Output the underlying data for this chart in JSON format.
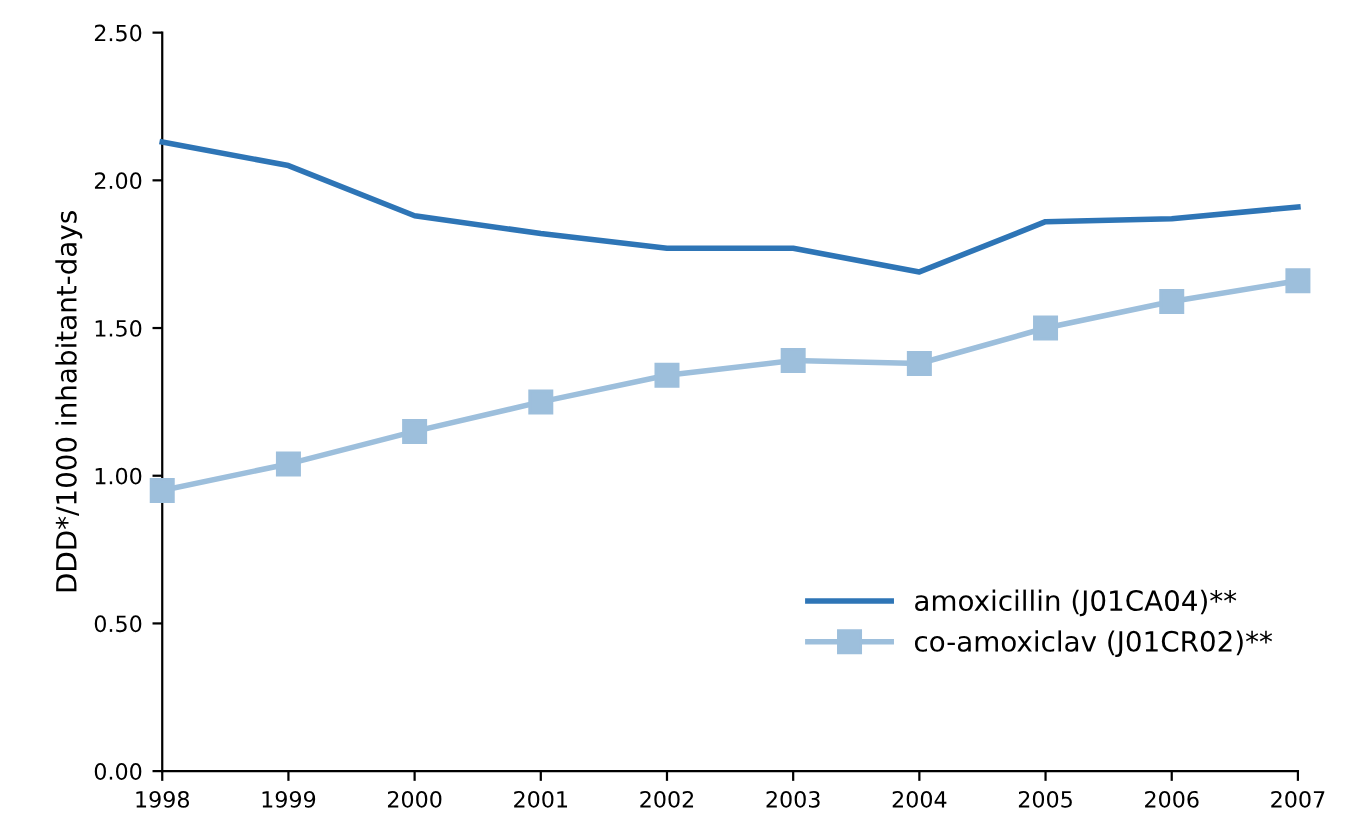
{
  "chart_data": {
    "type": "line",
    "ylabel": "DDD*/1000 inhabitant-days",
    "x": [
      1998,
      1999,
      2000,
      2001,
      2002,
      2003,
      2004,
      2005,
      2006,
      2007
    ],
    "series": [
      {
        "name": "amoxicillin (J01CA04)**",
        "color": "#2e75b6",
        "marker": "none",
        "values": [
          2.13,
          2.05,
          1.88,
          1.82,
          1.77,
          1.77,
          1.69,
          1.86,
          1.87,
          1.91
        ]
      },
      {
        "name": "co-amoxiclav (J01CR02)**",
        "color": "#9dbfdc",
        "marker": "square",
        "values": [
          0.95,
          1.04,
          1.15,
          1.25,
          1.34,
          1.39,
          1.38,
          1.5,
          1.59,
          1.66
        ]
      }
    ],
    "xlim": [
      1998,
      2007
    ],
    "xticks": [
      1998,
      1999,
      2000,
      2001,
      2002,
      2003,
      2004,
      2005,
      2006,
      2007
    ],
    "ylim": [
      0,
      2.5
    ],
    "yticks": [
      {
        "value": 0,
        "label": "0.00"
      },
      {
        "value": 0.5,
        "label": "0.50"
      },
      {
        "value": 1,
        "label": "1.00"
      },
      {
        "value": 1.5,
        "label": "1.50"
      },
      {
        "value": 2,
        "label": "2.00"
      },
      {
        "value": 2.5,
        "label": "2.50"
      }
    ],
    "grid": false,
    "legend": "right",
    "line_style": "solid"
  }
}
